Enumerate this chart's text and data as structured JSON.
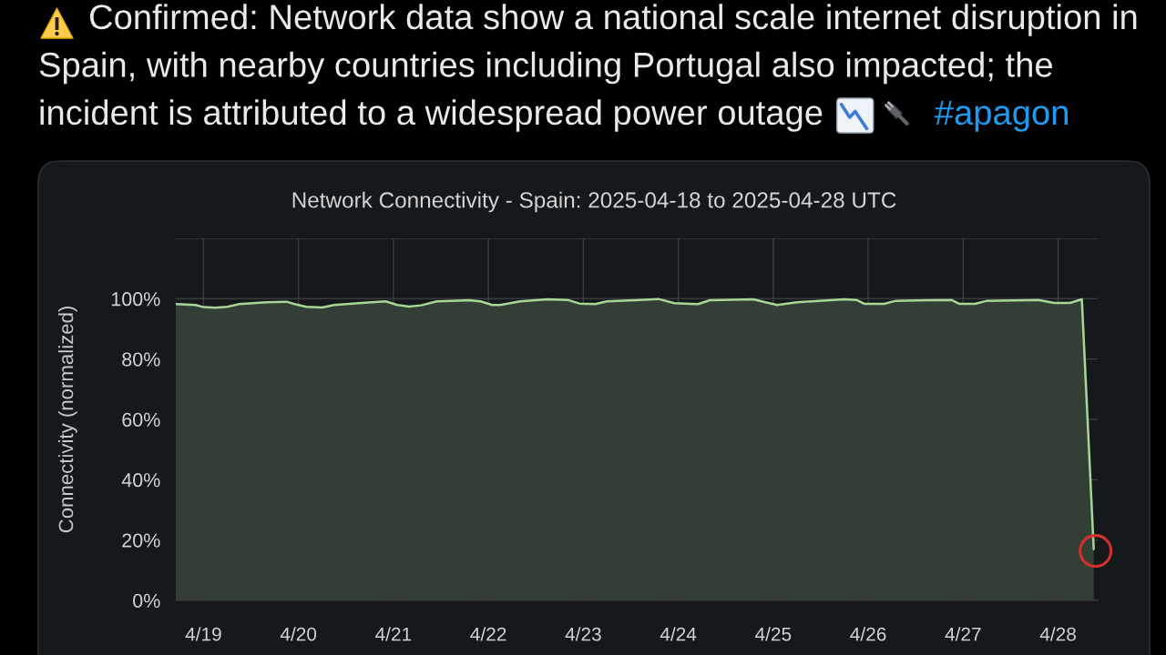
{
  "chart_data": {
    "type": "area",
    "title": "Network Connectivity - Spain: 2025-04-18 to 2025-04-28 UTC",
    "ylabel": "Connectivity (normalized)",
    "annotations": [
      "Confirmed: Network data show a national scale internet disruption in",
      "Spain, with nearby countries including Portugal also impacted; the",
      "incident is attributed to a widespread power outage",
      "#apagon"
    ],
    "x": [
      "2025-04-18T17:00",
      "2025-04-18T22:00",
      "2025-04-19T00:00",
      "2025-04-19T03:00",
      "2025-04-19T06:00",
      "2025-04-19T09:00",
      "2025-04-19T16:00",
      "2025-04-19T21:00",
      "2025-04-19T23:00",
      "2025-04-20T02:00",
      "2025-04-20T06:00",
      "2025-04-20T09:00",
      "2025-04-20T16:00",
      "2025-04-20T22:00",
      "2025-04-21T01:00",
      "2025-04-21T04:00",
      "2025-04-21T07:00",
      "2025-04-21T11:00",
      "2025-04-21T19:00",
      "2025-04-21T22:00",
      "2025-04-22T01:00",
      "2025-04-22T03:00",
      "2025-04-22T08:00",
      "2025-04-22T15:00",
      "2025-04-22T20:00",
      "2025-04-22T23:00",
      "2025-04-23T03:00",
      "2025-04-23T06:00",
      "2025-04-23T13:00",
      "2025-04-23T19:00",
      "2025-04-23T23:00",
      "2025-04-24T05:00",
      "2025-04-24T08:00",
      "2025-04-24T19:00",
      "2025-04-24T22:00",
      "2025-04-25T01:00",
      "2025-04-25T06:00",
      "2025-04-25T18:00",
      "2025-04-25T21:00",
      "2025-04-25T23:00",
      "2025-04-26T04:00",
      "2025-04-26T07:00",
      "2025-04-26T21:00",
      "2025-04-26T23:00",
      "2025-04-27T03:00",
      "2025-04-27T06:00",
      "2025-04-27T19:00",
      "2025-04-27T23:00",
      "2025-04-28T03:00",
      "2025-04-28T06:00",
      "2025-04-28T09:00"
    ],
    "values": [
      98.2,
      97.9,
      97.2,
      97.0,
      97.3,
      98.2,
      98.8,
      99.0,
      98.2,
      97.3,
      97.1,
      97.9,
      98.6,
      99.1,
      97.9,
      97.4,
      97.8,
      99.1,
      99.5,
      99.1,
      97.9,
      97.9,
      99.1,
      99.8,
      99.6,
      98.4,
      98.2,
      99.1,
      99.5,
      99.9,
      98.5,
      98.2,
      99.5,
      99.8,
      98.8,
      97.9,
      98.8,
      99.8,
      99.6,
      98.3,
      98.3,
      99.3,
      99.6,
      98.3,
      98.3,
      99.3,
      99.6,
      98.6,
      98.6,
      99.8,
      17
    ],
    "color": "#a9d596",
    "xlim": [
      "2025-04-18T17:00",
      "2025-04-28T10:00"
    ],
    "xticks": [
      {
        "value": "2025-04-19",
        "label": "4/19"
      },
      {
        "value": "2025-04-20",
        "label": "4/20"
      },
      {
        "value": "2025-04-21",
        "label": "4/21"
      },
      {
        "value": "2025-04-22",
        "label": "4/22"
      },
      {
        "value": "2025-04-23",
        "label": "4/23"
      },
      {
        "value": "2025-04-24",
        "label": "4/24"
      },
      {
        "value": "2025-04-25",
        "label": "4/25"
      },
      {
        "value": "2025-04-26",
        "label": "4/26"
      },
      {
        "value": "2025-04-27",
        "label": "4/27"
      },
      {
        "value": "2025-04-28",
        "label": "4/28"
      }
    ],
    "ylim": [
      0,
      120
    ],
    "yticks": [
      {
        "value": 0,
        "label": "0%"
      },
      {
        "value": 20,
        "label": "20%"
      },
      {
        "value": 40,
        "label": "40%"
      },
      {
        "value": 60,
        "label": "60%"
      },
      {
        "value": 80,
        "label": "80%"
      },
      {
        "value": 100,
        "label": "100%"
      },
      {
        "value": 120,
        "label": null
      }
    ],
    "grid": true
  }
}
